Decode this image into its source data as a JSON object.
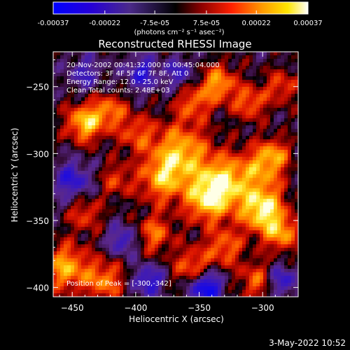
{
  "colorbar": {
    "tick_labels": [
      "-0.00037",
      "-0.00022",
      "-7.5e-05",
      "7.5e-05",
      "0.00022",
      "0.00037"
    ],
    "ticks": [
      -0.00037,
      -0.00022,
      -7.5e-05,
      7.5e-05,
      0.00022,
      0.00037
    ],
    "unit_label": "(photons cm⁻² s⁻¹ asec⁻²)",
    "colors": [
      "#0000ff",
      "#4b0082",
      "#6a1b9a",
      "#000000",
      "#b00000",
      "#ff4500",
      "#ffa500",
      "#ffff66",
      "#ffffff"
    ]
  },
  "chart_data": {
    "type": "heatmap",
    "title": "Reconstructed RHESSI Image",
    "xlabel": "Heliocentric X (arcsec)",
    "ylabel": "Heliocentric Y (arcsec)",
    "xlim": [
      -465,
      -272
    ],
    "ylim": [
      -407,
      -224
    ],
    "x_ticks": [
      -450,
      -400,
      -350,
      -300
    ],
    "y_ticks": [
      -400,
      -350,
      -300,
      -250
    ],
    "x_tick_labels": [
      "−450",
      "−400",
      "−350",
      "−300"
    ],
    "y_tick_labels": [
      "−400",
      "−350",
      "−300",
      "−250"
    ],
    "annotations": [
      "20-Nov-2002 00:41:32.000 to 00:45:04.000",
      "Detectors: 3F 4F 5F 6F 7F 8F, Att 0",
      "Energy Range: 12.0 - 25.0 keV",
      "Clean     Total counts: 2.48E+03"
    ],
    "peak_label": "Position of Peak = [-300,-342]",
    "peak": [
      -300,
      -342
    ]
  },
  "footer": {
    "timestamp": "3-May-2022 10:52"
  }
}
